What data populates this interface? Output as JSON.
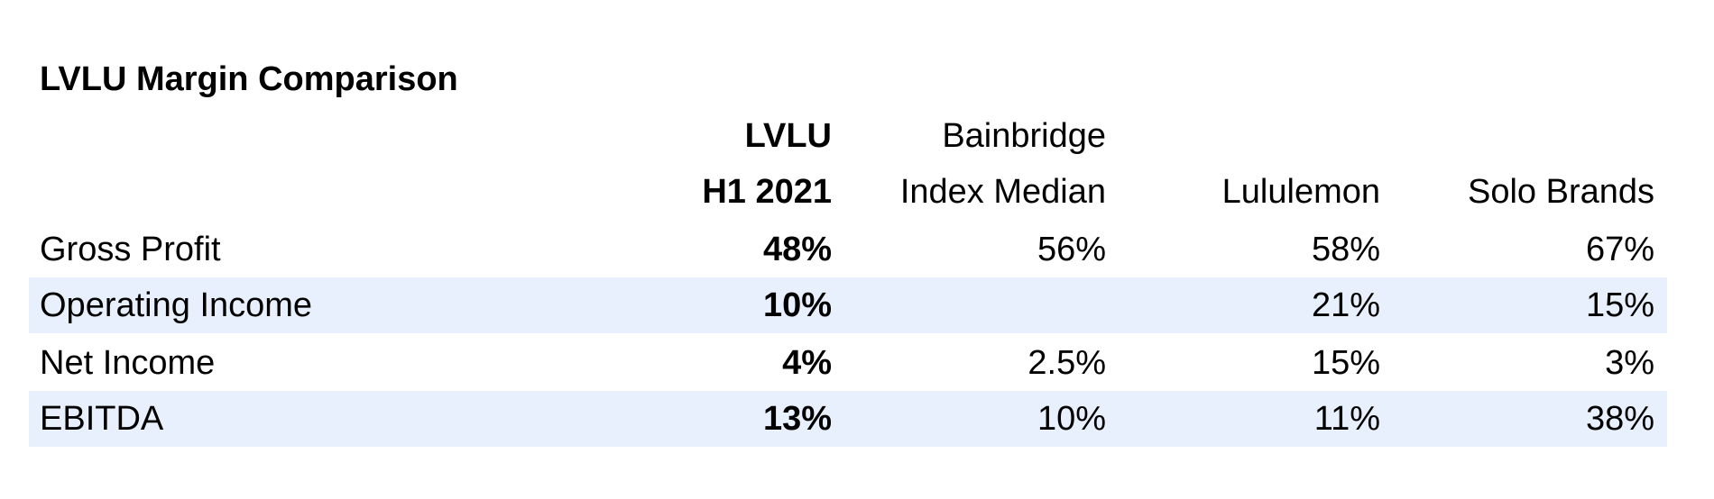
{
  "title": "LVLU Margin Comparison",
  "columns": [
    {
      "line1": "LVLU",
      "line2": "H1 2021"
    },
    {
      "line1": "Bainbridge",
      "line2": "Index Median"
    },
    {
      "line1": "",
      "line2": "Lululemon"
    },
    {
      "line1": "",
      "line2": "Solo Brands"
    }
  ],
  "rows": [
    {
      "label": "Gross Profit",
      "values": [
        "48%",
        "56%",
        "58%",
        "67%"
      ]
    },
    {
      "label": "Operating Income",
      "values": [
        "10%",
        "",
        "21%",
        "15%"
      ]
    },
    {
      "label": "Net Income",
      "values": [
        "4%",
        "2.5%",
        "15%",
        "3%"
      ]
    },
    {
      "label": "EBITDA",
      "values": [
        "13%",
        "10%",
        "11%",
        "38%"
      ]
    }
  ],
  "colors": {
    "stripe": "#e8f0fd",
    "text": "#000000",
    "background": "#ffffff"
  }
}
